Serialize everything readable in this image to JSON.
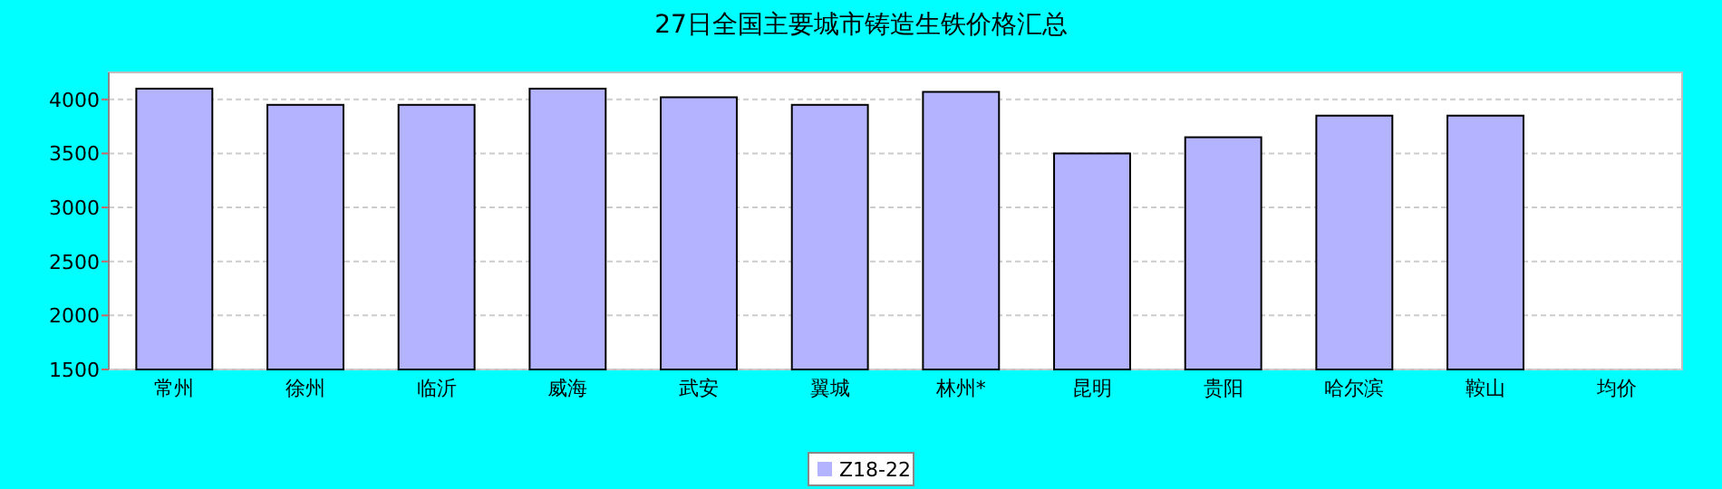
{
  "chart_data": {
    "type": "bar",
    "title": "27日全国主要城市铸造生铁价格汇总",
    "categories": [
      "常州",
      "徐州",
      "临沂",
      "威海",
      "武安",
      "翼城",
      "林州*",
      "昆明",
      "贵阳",
      "哈尔滨",
      "鞍山",
      "均价"
    ],
    "series": [
      {
        "name": "Z18-22",
        "color": "#b3b3ff",
        "values": [
          4100,
          3950,
          3950,
          4100,
          4020,
          3950,
          4070,
          3500,
          3650,
          3850,
          3850,
          null
        ]
      }
    ],
    "ylim": [
      1500,
      4250
    ],
    "yticks": [
      1500,
      2000,
      2500,
      3000,
      3500,
      4000
    ],
    "grid": "y",
    "legend": "bottom"
  }
}
